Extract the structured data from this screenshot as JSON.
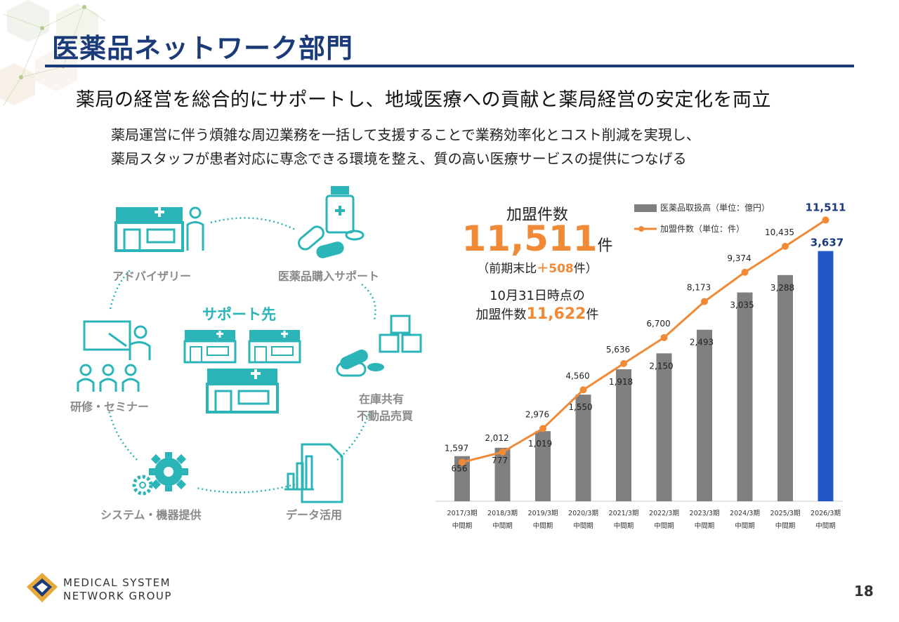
{
  "header": {
    "title": "医薬品ネットワーク部門",
    "subtitle": "薬局の経営を総合的にサポートし、地域医療への貢献と薬局経営の安定化を両立",
    "description_line1": "薬局運営に伴う煩雑な周辺業務を一括して支援することで業務効率化とコスト削減を実現し、",
    "description_line2": "薬局スタッフが患者対応に専念できる環境を整え、質の高い医療サービスの提供につなげる"
  },
  "diagram": {
    "center_label": "サポート先",
    "items": {
      "advisory": "アドバイザリー",
      "purchase": "医薬品購入サポート",
      "stock_line1": "在庫共有",
      "stock_line2": "不動品売買",
      "data": "データ活用",
      "system": "システム・機器提供",
      "training": "研修・セミナー"
    }
  },
  "kpi": {
    "heading": "加盟件数",
    "value": "11,511",
    "unit": "件",
    "prev_prefix": "（前期末比",
    "prev_delta": "＋508",
    "prev_suffix": "件）",
    "date_line": "10月31日時点の",
    "date_prefix": "加盟件数",
    "date_value": "11,622",
    "date_unit": "件"
  },
  "footer": {
    "logo_line1": "MEDICAL SYSTEM",
    "logo_line2": "NETWORK GROUP",
    "page_number": "18"
  },
  "colors": {
    "navy": "#1b3a7a",
    "teal": "#2bb5b8",
    "orange": "#f08a36",
    "bar_gray": "#7f7f7f",
    "bar_highlight": "#2157c9",
    "icon_gray": "#8a8a8a"
  },
  "chart_data": {
    "type": "bar",
    "categories": [
      "2017/3期",
      "2018/3期",
      "2019/3期",
      "2020/3期",
      "2021/3期",
      "2022/3期",
      "2023/3期",
      "2024/3期",
      "2025/3期",
      "2026/3期"
    ],
    "category_sublabel": "中間期",
    "series": [
      {
        "name": "医薬品取扱高（単位：億円）",
        "type": "bar",
        "values": [
          656,
          777,
          1019,
          1550,
          1918,
          2150,
          2493,
          3035,
          3288,
          3637
        ]
      },
      {
        "name": "加盟件数（単位：件）",
        "type": "line",
        "values": [
          1597,
          2012,
          2976,
          4560,
          5636,
          6700,
          8173,
          9374,
          10435,
          11511
        ]
      }
    ],
    "bar_ylim": [
      0,
      5000
    ],
    "line_ylim": [
      0,
      12500
    ],
    "highlight_index": 9,
    "legend_position": "top-right"
  }
}
